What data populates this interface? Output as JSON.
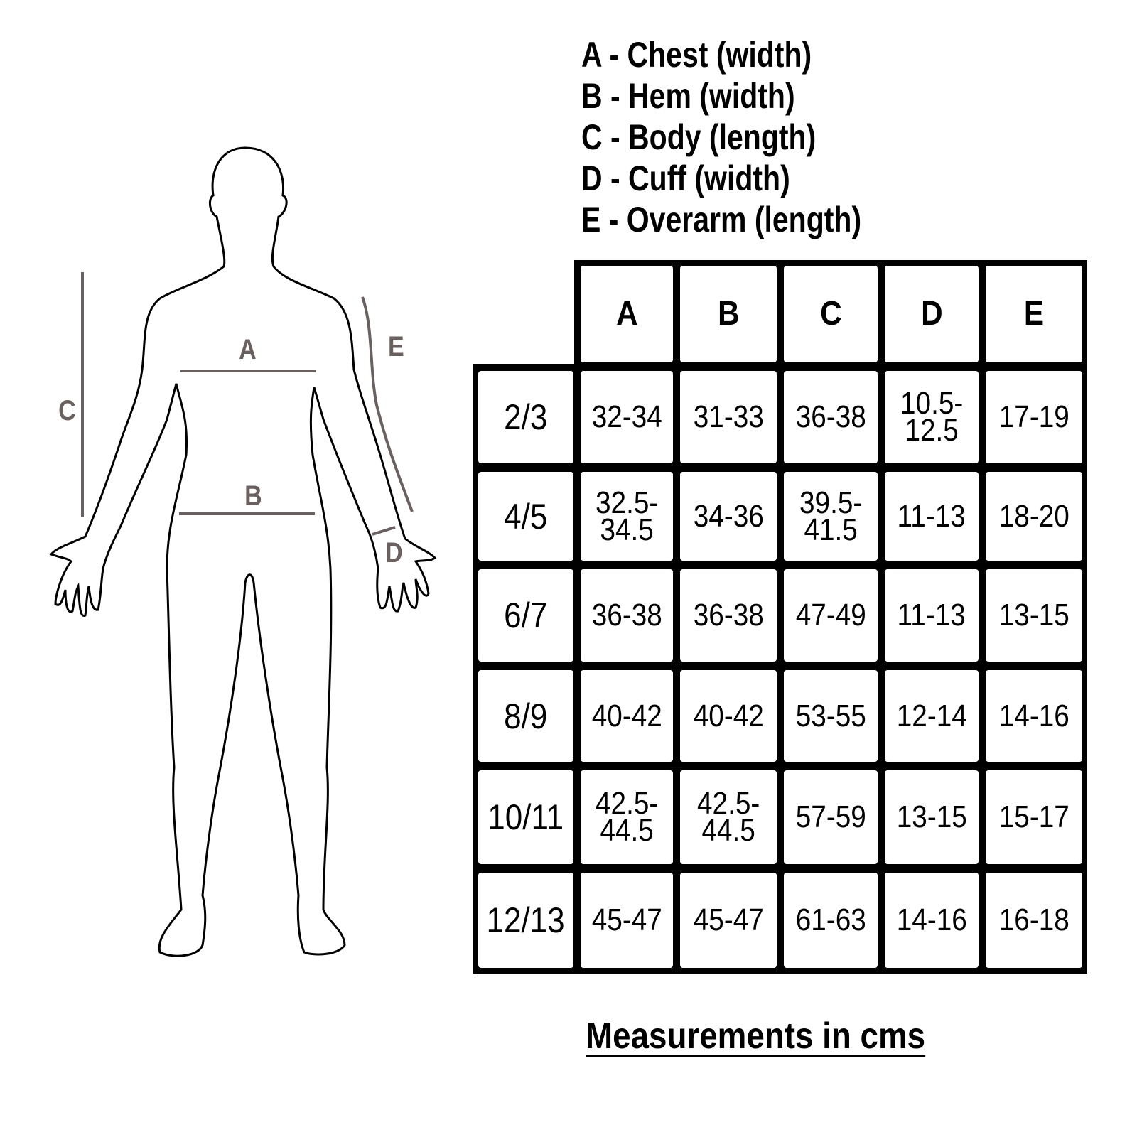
{
  "legend": [
    "A - Chest (width)",
    "B - Hem (width)",
    "C - Body (length)",
    "D - Cuff (width)",
    "E - Overarm (length)"
  ],
  "figure": {
    "labels": {
      "A": "A",
      "B": "B",
      "C": "C",
      "D": "D",
      "E": "E"
    },
    "line_color": "#6b6060"
  },
  "table": {
    "columns": [
      "A",
      "B",
      "C",
      "D",
      "E"
    ],
    "rows": [
      {
        "size": "2/3",
        "values": [
          "32-34",
          "31-33",
          "36-38",
          "10.5-\n12.5",
          "17-19"
        ]
      },
      {
        "size": "4/5",
        "values": [
          "32.5-\n34.5",
          "34-36",
          "39.5-\n41.5",
          "11-13",
          "18-20"
        ]
      },
      {
        "size": "6/7",
        "values": [
          "36-38",
          "36-38",
          "47-49",
          "11-13",
          "13-15"
        ]
      },
      {
        "size": "8/9",
        "values": [
          "40-42",
          "40-42",
          "53-55",
          "12-14",
          "14-16"
        ]
      },
      {
        "size": "10/11",
        "values": [
          "42.5-\n44.5",
          "42.5-\n44.5",
          "57-59",
          "13-15",
          "15-17"
        ]
      },
      {
        "size": "12/13",
        "values": [
          "45-47",
          "45-47",
          "61-63",
          "14-16",
          "16-18"
        ]
      }
    ]
  },
  "footer": "Measurements in cms"
}
